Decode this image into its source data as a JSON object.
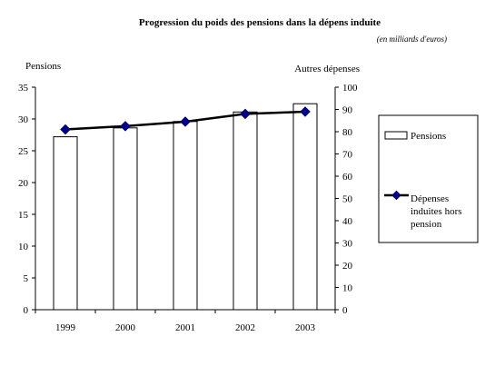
{
  "chart_data": {
    "type": "bar",
    "title": "Progression du poids des pensions dans la dépens induite",
    "subtitle": "(en milliards d'euros)",
    "categories": [
      "1999",
      "2000",
      "2001",
      "2002",
      "2003"
    ],
    "y_left_label": "Pensions",
    "y_right_label": "Autres dépenses",
    "y_left_lim": [
      0,
      35
    ],
    "y_left_ticks": [
      "0",
      "5",
      "10",
      "15",
      "20",
      "25",
      "30",
      "35"
    ],
    "y_right_lim": [
      0,
      100
    ],
    "y_right_ticks": [
      "0",
      "10",
      "20",
      "30",
      "40",
      "50",
      "60",
      "70",
      "80",
      "90",
      "100"
    ],
    "grid": false,
    "legend_position": "right",
    "series": [
      {
        "name": "Pensions",
        "type": "bar",
        "axis": "left",
        "values": [
          27.2,
          28.6,
          29.6,
          31.1,
          32.4
        ],
        "color": "#ffffff",
        "stroke": "#000000"
      },
      {
        "name": "Dépenses induites hors pension",
        "type": "line",
        "axis": "right",
        "values": [
          81.0,
          82.5,
          84.5,
          88.0,
          89.0
        ],
        "color": "#000000",
        "marker_color": "#00008b"
      }
    ]
  }
}
